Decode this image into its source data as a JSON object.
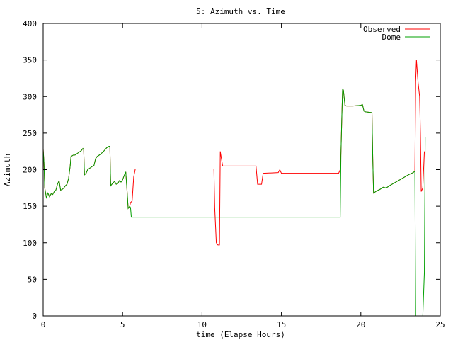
{
  "chart_data": {
    "type": "line",
    "title": "5: Azimuth vs. Time",
    "xlabel": "time (Elapse Hours)",
    "ylabel": "Azimuth",
    "xlim": [
      0,
      25
    ],
    "ylim": [
      0,
      400
    ],
    "xticks": [
      0,
      5,
      10,
      15,
      20,
      25
    ],
    "yticks": [
      0,
      50,
      100,
      150,
      200,
      250,
      300,
      350,
      400
    ],
    "grid": false,
    "legend_position": "top-right",
    "series": [
      {
        "name": "Observed",
        "color": "#ff0000",
        "points": [
          [
            0.0,
            228
          ],
          [
            0.05,
            210
          ],
          [
            0.1,
            175
          ],
          [
            0.2,
            162
          ],
          [
            0.3,
            168
          ],
          [
            0.4,
            163
          ],
          [
            0.5,
            167
          ],
          [
            0.6,
            166
          ],
          [
            0.7,
            170
          ],
          [
            0.8,
            172
          ],
          [
            0.9,
            180
          ],
          [
            1.0,
            185
          ],
          [
            1.1,
            172
          ],
          [
            1.2,
            173
          ],
          [
            1.3,
            175
          ],
          [
            1.4,
            178
          ],
          [
            1.5,
            180
          ],
          [
            1.6,
            188
          ],
          [
            1.7,
            205
          ],
          [
            1.75,
            218
          ],
          [
            1.9,
            220
          ],
          [
            2.0,
            220
          ],
          [
            2.2,
            223
          ],
          [
            2.4,
            226
          ],
          [
            2.5,
            229
          ],
          [
            2.55,
            228
          ],
          [
            2.6,
            193
          ],
          [
            2.7,
            195
          ],
          [
            2.8,
            200
          ],
          [
            3.0,
            203
          ],
          [
            3.2,
            206
          ],
          [
            3.3,
            215
          ],
          [
            3.4,
            218
          ],
          [
            3.6,
            221
          ],
          [
            3.8,
            225
          ],
          [
            4.0,
            230
          ],
          [
            4.15,
            232
          ],
          [
            4.2,
            232
          ],
          [
            4.25,
            178
          ],
          [
            4.4,
            182
          ],
          [
            4.5,
            184
          ],
          [
            4.6,
            180
          ],
          [
            4.7,
            181
          ],
          [
            4.8,
            185
          ],
          [
            4.9,
            183
          ],
          [
            5.0,
            186
          ],
          [
            5.1,
            192
          ],
          [
            5.2,
            197
          ],
          [
            5.3,
            165
          ],
          [
            5.35,
            147
          ],
          [
            5.45,
            150
          ],
          [
            5.5,
            155
          ],
          [
            5.6,
            157
          ],
          [
            5.7,
            190
          ],
          [
            5.8,
            201
          ],
          [
            10.75,
            201
          ],
          [
            10.8,
            148
          ],
          [
            10.9,
            100
          ],
          [
            11.0,
            97
          ],
          [
            11.1,
            97
          ],
          [
            11.15,
            225
          ],
          [
            11.2,
            218
          ],
          [
            11.3,
            205
          ],
          [
            13.4,
            205
          ],
          [
            13.5,
            180
          ],
          [
            13.75,
            180
          ],
          [
            13.85,
            195
          ],
          [
            14.8,
            196
          ],
          [
            14.9,
            200
          ],
          [
            15.0,
            195
          ],
          [
            18.6,
            195
          ],
          [
            18.7,
            200
          ],
          [
            18.75,
            225
          ],
          [
            18.8,
            270
          ],
          [
            18.85,
            310
          ],
          [
            18.9,
            309
          ],
          [
            19.0,
            288
          ],
          [
            19.1,
            287
          ],
          [
            19.5,
            287
          ],
          [
            20.0,
            288
          ],
          [
            20.1,
            289
          ],
          [
            20.2,
            280
          ],
          [
            20.3,
            279
          ],
          [
            20.7,
            278
          ],
          [
            20.75,
            215
          ],
          [
            20.8,
            168
          ],
          [
            21.0,
            171
          ],
          [
            21.2,
            173
          ],
          [
            21.4,
            176
          ],
          [
            21.6,
            175
          ],
          [
            21.8,
            178
          ],
          [
            22.2,
            183
          ],
          [
            22.6,
            188
          ],
          [
            23.0,
            193
          ],
          [
            23.3,
            196
          ],
          [
            23.4,
            198
          ],
          [
            23.45,
            320
          ],
          [
            23.5,
            350
          ],
          [
            23.6,
            320
          ],
          [
            23.7,
            300
          ],
          [
            23.75,
            250
          ],
          [
            23.8,
            170
          ],
          [
            23.9,
            175
          ],
          [
            24.0,
            225
          ]
        ]
      },
      {
        "name": "Dome",
        "color": "#00a000",
        "points": [
          [
            0.0,
            228
          ],
          [
            0.05,
            210
          ],
          [
            0.1,
            175
          ],
          [
            0.2,
            162
          ],
          [
            0.3,
            168
          ],
          [
            0.4,
            163
          ],
          [
            0.5,
            167
          ],
          [
            0.6,
            166
          ],
          [
            0.7,
            170
          ],
          [
            0.8,
            172
          ],
          [
            0.9,
            180
          ],
          [
            1.0,
            185
          ],
          [
            1.1,
            172
          ],
          [
            1.2,
            173
          ],
          [
            1.3,
            175
          ],
          [
            1.4,
            178
          ],
          [
            1.5,
            180
          ],
          [
            1.6,
            188
          ],
          [
            1.7,
            205
          ],
          [
            1.75,
            218
          ],
          [
            1.9,
            220
          ],
          [
            2.0,
            220
          ],
          [
            2.2,
            223
          ],
          [
            2.4,
            226
          ],
          [
            2.5,
            229
          ],
          [
            2.55,
            228
          ],
          [
            2.6,
            193
          ],
          [
            2.7,
            195
          ],
          [
            2.8,
            200
          ],
          [
            3.0,
            203
          ],
          [
            3.2,
            206
          ],
          [
            3.3,
            215
          ],
          [
            3.4,
            218
          ],
          [
            3.6,
            221
          ],
          [
            3.8,
            225
          ],
          [
            4.0,
            230
          ],
          [
            4.15,
            232
          ],
          [
            4.2,
            232
          ],
          [
            4.25,
            178
          ],
          [
            4.4,
            182
          ],
          [
            4.5,
            184
          ],
          [
            4.6,
            180
          ],
          [
            4.7,
            181
          ],
          [
            4.8,
            185
          ],
          [
            4.9,
            183
          ],
          [
            5.0,
            186
          ],
          [
            5.1,
            192
          ],
          [
            5.2,
            197
          ],
          [
            5.3,
            165
          ],
          [
            5.35,
            147
          ],
          [
            5.45,
            150
          ],
          [
            5.5,
            148
          ],
          [
            5.55,
            135
          ],
          [
            18.7,
            135
          ],
          [
            18.75,
            225
          ],
          [
            18.8,
            270
          ],
          [
            18.85,
            310
          ],
          [
            18.9,
            309
          ],
          [
            19.0,
            288
          ],
          [
            19.1,
            287
          ],
          [
            19.5,
            287
          ],
          [
            20.0,
            288
          ],
          [
            20.1,
            289
          ],
          [
            20.2,
            280
          ],
          [
            20.3,
            279
          ],
          [
            20.7,
            278
          ],
          [
            20.75,
            215
          ],
          [
            20.8,
            168
          ],
          [
            21.0,
            171
          ],
          [
            21.2,
            173
          ],
          [
            21.4,
            176
          ],
          [
            21.6,
            175
          ],
          [
            21.8,
            178
          ],
          [
            22.2,
            183
          ],
          [
            22.6,
            188
          ],
          [
            23.0,
            193
          ],
          [
            23.3,
            196
          ],
          [
            23.4,
            198
          ],
          [
            23.45,
            0
          ],
          [
            23.9,
            0
          ],
          [
            24.0,
            60
          ],
          [
            24.05,
            245
          ]
        ]
      }
    ]
  }
}
